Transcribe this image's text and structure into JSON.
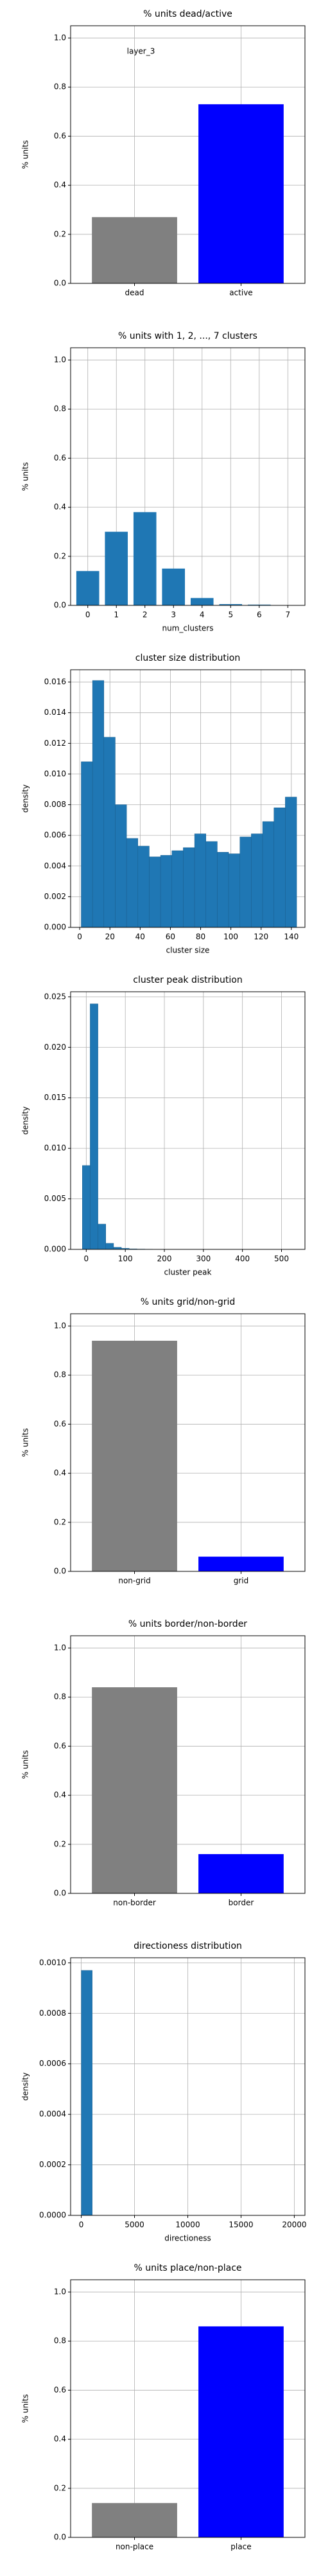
{
  "chart_data": [
    {
      "type": "bar",
      "title": "% units dead/active",
      "annotation": "layer_3",
      "ylabel": "% units",
      "categories": [
        "dead",
        "active"
      ],
      "values": [
        0.27,
        0.73
      ],
      "colors": [
        "gray",
        "blue"
      ],
      "ylim": [
        0,
        1.05
      ],
      "yticks": [
        {
          "value": 0,
          "label": "0.0"
        },
        {
          "value": 0.2,
          "label": "0.2"
        },
        {
          "value": 0.4,
          "label": "0.4"
        },
        {
          "value": 0.6,
          "label": "0.6"
        },
        {
          "value": 0.8,
          "label": "0.8"
        },
        {
          "value": 1,
          "label": "1.0"
        }
      ],
      "grid": true
    },
    {
      "type": "bar",
      "title": "% units with 1, 2, ..., 7 clusters",
      "ylabel": "% units",
      "xlabel": "num_clusters",
      "categories": [
        "0",
        "1",
        "2",
        "3",
        "4",
        "5",
        "6",
        "7"
      ],
      "values": [
        0.14,
        0.3,
        0.38,
        0.15,
        0.03,
        0.005,
        0.003,
        0.001
      ],
      "color": "#1f77b4",
      "ylim": [
        0,
        1.05
      ],
      "yticks": [
        {
          "value": 0,
          "label": "0.0"
        },
        {
          "value": 0.2,
          "label": "0.2"
        },
        {
          "value": 0.4,
          "label": "0.4"
        },
        {
          "value": 0.6,
          "label": "0.6"
        },
        {
          "value": 0.8,
          "label": "0.8"
        },
        {
          "value": 1,
          "label": "1.0"
        }
      ],
      "grid": true
    },
    {
      "type": "histogram",
      "title": "cluster size distribution",
      "ylabel": "density",
      "xlabel": "cluster size",
      "color": "#1f77b4",
      "bins": [
        1,
        8.5,
        16,
        23.5,
        31,
        38.5,
        46,
        53.5,
        61,
        68.5,
        76,
        83.5,
        91,
        98.5,
        106,
        113.5,
        121,
        128.5,
        136,
        143.5
      ],
      "values": [
        0.0108,
        0.0161,
        0.0124,
        0.008,
        0.0058,
        0.0053,
        0.0046,
        0.0047,
        0.005,
        0.0052,
        0.0061,
        0.0056,
        0.0049,
        0.0048,
        0.0059,
        0.0061,
        0.0069,
        0.0078,
        0.0085
      ],
      "xlim": [
        -6,
        149
      ],
      "xticks": [
        0,
        20,
        40,
        60,
        80,
        100,
        120,
        140
      ],
      "ylim": [
        0,
        0.0168
      ],
      "yticks": [
        {
          "value": 0,
          "label": "0.000"
        },
        {
          "value": 0.002,
          "label": "0.002"
        },
        {
          "value": 0.004,
          "label": "0.004"
        },
        {
          "value": 0.006,
          "label": "0.006"
        },
        {
          "value": 0.008,
          "label": "0.008"
        },
        {
          "value": 0.01,
          "label": "0.010"
        },
        {
          "value": 0.012,
          "label": "0.012"
        },
        {
          "value": 0.014,
          "label": "0.014"
        },
        {
          "value": 0.016,
          "label": "0.016"
        }
      ],
      "grid": true
    },
    {
      "type": "histogram",
      "title": "cluster peak distribution",
      "ylabel": "density",
      "xlabel": "cluster peak",
      "color": "#1f77b4",
      "bins": [
        -10,
        10,
        30,
        50,
        70,
        90,
        110,
        130,
        150,
        170,
        190
      ],
      "values": [
        0.0083,
        0.0243,
        0.0025,
        0.0006,
        0.0002,
        0.0001,
        5e-05,
        3e-05,
        2e-05,
        1e-05
      ],
      "xlim": [
        -40,
        560
      ],
      "xticks": [
        0,
        100,
        200,
        300,
        400,
        500
      ],
      "ylim": [
        0,
        0.0255
      ],
      "yticks": [
        {
          "value": 0,
          "label": "0.000"
        },
        {
          "value": 0.005,
          "label": "0.005"
        },
        {
          "value": 0.01,
          "label": "0.010"
        },
        {
          "value": 0.015,
          "label": "0.015"
        },
        {
          "value": 0.02,
          "label": "0.020"
        },
        {
          "value": 0.025,
          "label": "0.025"
        }
      ],
      "grid": true
    },
    {
      "type": "bar",
      "title": "% units grid/non-grid",
      "ylabel": "% units",
      "categories": [
        "non-grid",
        "grid"
      ],
      "values": [
        0.94,
        0.06
      ],
      "colors": [
        "gray",
        "blue"
      ],
      "ylim": [
        0,
        1.05
      ],
      "yticks": [
        {
          "value": 0,
          "label": "0.0"
        },
        {
          "value": 0.2,
          "label": "0.2"
        },
        {
          "value": 0.4,
          "label": "0.4"
        },
        {
          "value": 0.6,
          "label": "0.6"
        },
        {
          "value": 0.8,
          "label": "0.8"
        },
        {
          "value": 1,
          "label": "1.0"
        }
      ],
      "grid": true
    },
    {
      "type": "bar",
      "title": "% units border/non-border",
      "ylabel": "% units",
      "categories": [
        "non-border",
        "border"
      ],
      "values": [
        0.84,
        0.16
      ],
      "colors": [
        "gray",
        "blue"
      ],
      "ylim": [
        0,
        1.05
      ],
      "yticks": [
        {
          "value": 0,
          "label": "0.0"
        },
        {
          "value": 0.2,
          "label": "0.2"
        },
        {
          "value": 0.4,
          "label": "0.4"
        },
        {
          "value": 0.6,
          "label": "0.6"
        },
        {
          "value": 0.8,
          "label": "0.8"
        },
        {
          "value": 1,
          "label": "1.0"
        }
      ],
      "grid": true
    },
    {
      "type": "histogram",
      "title": "directioness distribution",
      "ylabel": "density",
      "xlabel": "directioness",
      "color": "#1f77b4",
      "bins": [
        0,
        1030
      ],
      "values": [
        0.00097
      ],
      "xlim": [
        -1000,
        21000
      ],
      "xticks": [
        0,
        5000,
        10000,
        15000,
        20000
      ],
      "ylim": [
        0,
        0.00102
      ],
      "yticks": [
        {
          "value": 0,
          "label": "0.0000"
        },
        {
          "value": 0.0002,
          "label": "0.0002"
        },
        {
          "value": 0.0004,
          "label": "0.0004"
        },
        {
          "value": 0.0006,
          "label": "0.0006"
        },
        {
          "value": 0.0008,
          "label": "0.0008"
        },
        {
          "value": 0.001,
          "label": "0.0010"
        }
      ],
      "grid": true
    },
    {
      "type": "bar",
      "title": "% units place/non-place",
      "ylabel": "% units",
      "categories": [
        "non-place",
        "place"
      ],
      "values": [
        0.14,
        0.86
      ],
      "colors": [
        "gray",
        "blue"
      ],
      "ylim": [
        0,
        1.05
      ],
      "yticks": [
        {
          "value": 0,
          "label": "0.0"
        },
        {
          "value": 0.2,
          "label": "0.2"
        },
        {
          "value": 0.4,
          "label": "0.4"
        },
        {
          "value": 0.6,
          "label": "0.6"
        },
        {
          "value": 0.8,
          "label": "0.8"
        },
        {
          "value": 1,
          "label": "1.0"
        }
      ],
      "grid": true
    }
  ]
}
